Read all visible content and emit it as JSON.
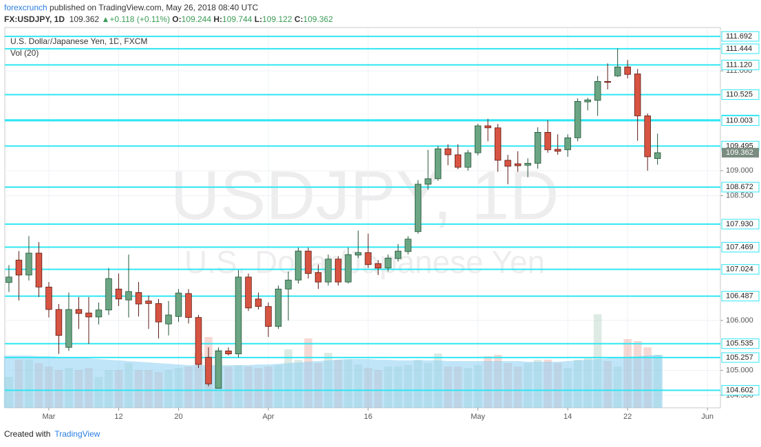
{
  "header": {
    "author": "forexcrunch",
    "published": "published on TradingView.com, May 26, 2018 08:40 UTC",
    "symbol": "FX:USDJPY, 1D",
    "change": "+0.118 (+0.11%)",
    "open_label": "O:",
    "high_label": "H:",
    "low_label": "L:",
    "close_label": "C:"
  },
  "footer": {
    "created": "Created with",
    "brand": "TradingView"
  },
  "chart_data": {
    "type": "candlestick",
    "title": "U.S. Dollar/Japanese Yen, 1D, FXCM",
    "watermark": "USDJPY, 1D",
    "watermark_sub": "U.S. Dollar/Japanese Yen",
    "volume_label": "Vol (20)",
    "categories": [
      null,
      null,
      null,
      null,
      "Mar",
      null,
      null,
      null,
      null,
      null,
      null,
      "12",
      null,
      null,
      null,
      null,
      null,
      "20",
      null,
      null,
      null,
      null,
      null,
      null,
      null,
      null,
      "Apr",
      null,
      null,
      null,
      null,
      null,
      null,
      null,
      null,
      null,
      "16",
      null,
      null,
      null,
      null,
      null,
      null,
      null,
      null,
      null,
      null,
      "May",
      null,
      null,
      null,
      null,
      null,
      null,
      null,
      null,
      "14",
      null,
      null,
      null,
      null,
      null,
      "22",
      null,
      null,
      null,
      null,
      null,
      null,
      null,
      "Jun"
    ],
    "open": [
      106.76,
      107.21,
      106.91,
      107.35,
      106.67,
      106.22,
      105.46,
      106.22,
      106.15,
      106.07,
      106.21,
      106.63,
      106.41,
      106.56,
      106.39,
      106.34,
      105.93,
      106.08,
      106.54,
      106.06,
      105.26,
      104.64,
      105.39,
      105.33,
      106.87,
      106.43,
      106.28,
      105.88,
      106.63,
      106.81,
      107.39,
      106.96,
      106.77,
      107.23,
      106.77,
      107.31,
      107.36,
      107.14,
      107.05,
      107.24,
      107.38,
      107.78,
      108.73,
      108.84,
      109.44,
      109.32,
      109.07,
      109.36,
      109.9,
      109.86,
      109.21,
      109.14,
      109.11,
      109.15,
      109.77,
      109.43,
      109.42,
      109.66,
      110.38,
      110.41,
      110.79,
      110.9,
      111.08,
      110.94,
      110.1,
      109.244,
      null,
      null,
      null,
      null,
      null
    ],
    "high": [
      107.11,
      107.39,
      107.69,
      107.57,
      106.77,
      106.33,
      106.56,
      106.47,
      106.47,
      106.36,
      107.05,
      106.94,
      107.32,
      106.77,
      106.5,
      106.43,
      106.39,
      106.63,
      106.63,
      106.11,
      105.46,
      105.46,
      105.46,
      107.01,
      106.94,
      106.56,
      106.36,
      106.7,
      106.98,
      107.46,
      107.46,
      107.12,
      107.32,
      107.29,
      107.46,
      107.8,
      107.74,
      107.21,
      107.32,
      107.53,
      107.69,
      108.81,
      109.42,
      109.5,
      109.53,
      109.53,
      109.42,
      109.94,
      110.04,
      109.94,
      109.32,
      109.39,
      109.25,
      109.87,
      110.01,
      109.73,
      109.73,
      110.45,
      110.46,
      110.9,
      111.15,
      111.45,
      111.22,
      111.04,
      110.15,
      109.744,
      null,
      null,
      null,
      null,
      null
    ],
    "low": [
      106.57,
      106.4,
      106.8,
      106.47,
      106.06,
      105.33,
      105.39,
      105.83,
      105.53,
      105.92,
      106.11,
      106.29,
      106.06,
      106.08,
      105.83,
      105.64,
      105.7,
      105.97,
      105.94,
      105.05,
      104.68,
      104.64,
      105.3,
      105.26,
      106.19,
      106.22,
      105.67,
      105.83,
      106.0,
      106.74,
      106.84,
      106.63,
      106.7,
      106.7,
      106.74,
      107.25,
      107.05,
      106.91,
      106.98,
      107.18,
      107.32,
      107.74,
      108.62,
      108.8,
      109.11,
      109.03,
      109.0,
      109.31,
      109.59,
      108.98,
      108.73,
      108.98,
      108.87,
      109.04,
      109.36,
      109.32,
      109.28,
      109.59,
      110.21,
      110.1,
      110.63,
      110.88,
      110.85,
      109.6,
      109.0,
      109.122,
      null,
      null,
      null,
      null,
      null
    ],
    "close": [
      106.87,
      106.91,
      107.35,
      106.67,
      106.22,
      105.7,
      106.22,
      106.14,
      106.07,
      106.21,
      106.84,
      106.43,
      106.58,
      106.33,
      106.34,
      105.97,
      106.11,
      106.55,
      106.06,
      105.12,
      104.73,
      105.39,
      105.33,
      106.87,
      106.25,
      106.28,
      105.88,
      106.63,
      106.81,
      107.39,
      106.94,
      106.77,
      107.23,
      106.77,
      107.32,
      107.36,
      107.12,
      107.05,
      107.25,
      107.39,
      107.63,
      108.73,
      108.84,
      109.44,
      109.32,
      109.07,
      109.36,
      109.9,
      109.86,
      109.21,
      109.09,
      109.1,
      109.15,
      109.77,
      109.42,
      109.39,
      109.66,
      110.39,
      110.42,
      110.79,
      110.77,
      111.08,
      110.93,
      110.1,
      109.28,
      109.362,
      null,
      null,
      null,
      null,
      null
    ],
    "volume": [
      45,
      70,
      70,
      65,
      60,
      55,
      58,
      55,
      58,
      45,
      55,
      55,
      65,
      55,
      55,
      52,
      55,
      58,
      60,
      80,
      103,
      85,
      60,
      62,
      60,
      58,
      60,
      62,
      85,
      70,
      101,
      65,
      80,
      70,
      70,
      63,
      58,
      55,
      60,
      60,
      62,
      70,
      65,
      79,
      60,
      60,
      58,
      62,
      75,
      77,
      65,
      60,
      65,
      70,
      70,
      65,
      58,
      70,
      72,
      136,
      68,
      60,
      100,
      97,
      88,
      77,
      null,
      null,
      null,
      null,
      null
    ],
    "volume_ma": [
      76,
      76,
      76,
      75,
      75,
      74,
      73,
      73,
      72,
      71,
      70,
      69,
      68,
      67,
      66,
      65,
      64,
      63,
      62,
      62,
      62,
      62,
      62,
      62,
      62,
      63,
      63,
      64,
      65,
      66,
      67,
      68,
      69,
      70,
      71,
      71,
      71,
      70,
      70,
      69,
      69,
      69,
      69,
      69,
      68,
      68,
      68,
      68,
      68,
      68,
      68,
      68,
      67,
      67,
      67,
      67,
      68,
      69,
      70,
      71,
      72,
      73,
      74,
      75,
      76,
      77,
      null,
      null,
      null,
      null,
      null
    ],
    "up_color": "#6ba583",
    "down_color": "#d75442",
    "up_border": "#225437",
    "down_border": "#5b1a13",
    "volume_ma_color": "#8ccff2",
    "level_color": "#2ee6f2",
    "xlim": [
      -0.41,
      71.3
    ],
    "ylim": [
      104.25,
      111.87
    ],
    "yticks": [
      {
        "value": 104.5,
        "label": "104.500"
      },
      {
        "value": 105,
        "label": "105.000"
      },
      {
        "value": 106,
        "label": "106.000"
      },
      {
        "value": 108.5,
        "label": "108.500"
      },
      {
        "value": 109,
        "label": "109.000"
      },
      {
        "value": 111,
        "label": "111.000"
      }
    ],
    "levels": [
      111.692,
      111.444,
      {
        "value": 111.12,
        "label": "111.120"
      },
      110.525,
      110.018,
      110.003,
      109.495,
      108.672,
      {
        "value": 107.93,
        "label": "107.930"
      },
      107.469,
      107.024,
      106.487,
      105.535,
      105.257,
      104.602
    ],
    "grid": true
  }
}
